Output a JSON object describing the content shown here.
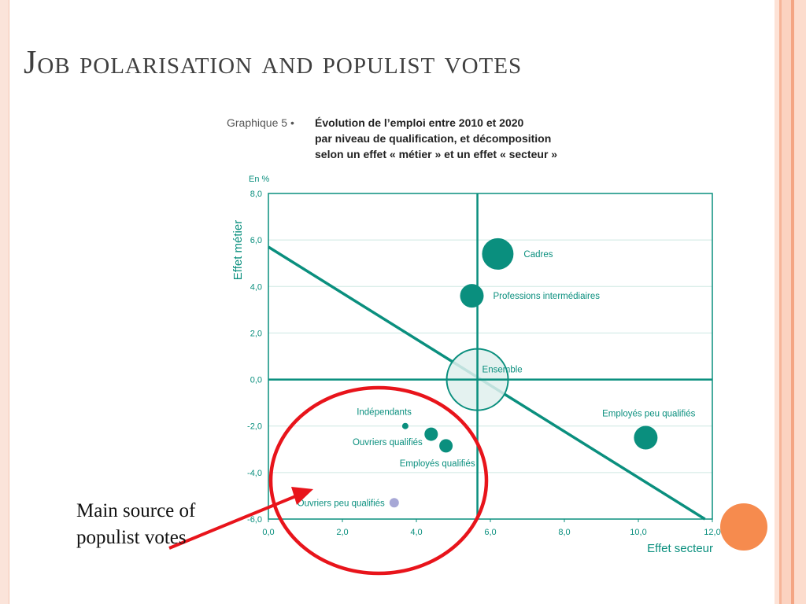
{
  "slide": {
    "title": "Job polarisation and populist votes",
    "annotation": "Main source of populist votes"
  },
  "colors": {
    "teal": "#0a8f7e",
    "teal_light": "#dff0ed",
    "lilac": "#a7a8d6",
    "red_annotation": "#e8141b",
    "orange_accent": "#f68b4e",
    "grid": "#cde7e2"
  },
  "chart_data": {
    "type": "scatter",
    "figure_label": "Graphique 5 •",
    "title_lines": [
      "Évolution de l’emploi entre 2010 et 2020",
      "par niveau de qualification, et décomposition",
      "selon un effet « métier » et un effet « secteur »"
    ],
    "unit_label": "En %",
    "xlabel": "Effet secteur",
    "ylabel": "Effet métier",
    "xlim": [
      0,
      12
    ],
    "ylim": [
      -6,
      8
    ],
    "x_ticks": [
      "0,0",
      "2,0",
      "4,0",
      "6,0",
      "8,0",
      "10,0",
      "12,0"
    ],
    "y_ticks": [
      "8,0",
      "6,0",
      "4,0",
      "2,0",
      "0,0",
      "-2,0",
      "-4,0",
      "-6,0"
    ],
    "grid": true,
    "reference_lines": {
      "vertical_x": 5.65,
      "horizontal_y": 0
    },
    "trend_line": {
      "from": [
        0,
        5.7
      ],
      "to": [
        11.8,
        -6
      ]
    },
    "points": [
      {
        "label": "Cadres",
        "x": 6.2,
        "y": 5.4,
        "size": "large"
      },
      {
        "label": "Professions intermédiaires",
        "x": 5.5,
        "y": 3.6,
        "size": "medium"
      },
      {
        "label": "Ensemble",
        "x": 5.65,
        "y": 0.0,
        "size": "xlarge",
        "style": "outline"
      },
      {
        "label": "Employés peu qualifiés",
        "x": 10.2,
        "y": -2.5,
        "size": "medium"
      },
      {
        "label": "Indépendants",
        "x": 3.7,
        "y": -2.0,
        "size": "tiny"
      },
      {
        "label": "Ouvriers qualifiés",
        "x": 4.4,
        "y": -2.35,
        "size": "small"
      },
      {
        "label": "Employés qualifiés",
        "x": 4.8,
        "y": -2.85,
        "size": "small"
      },
      {
        "label": "Ouvriers peu qualifiés",
        "x": 3.4,
        "y": -5.3,
        "size": "small",
        "style": "lilac"
      }
    ]
  }
}
